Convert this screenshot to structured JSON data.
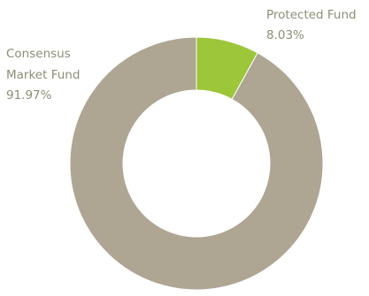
{
  "chart_data": {
    "type": "pie",
    "donut": true,
    "title": "",
    "slices": [
      {
        "label_lines": [
          "Protected Fund"
        ],
        "value": 8.03,
        "value_label": "8.03%",
        "color": "#9dc63a"
      },
      {
        "label_lines": [
          "Consensus",
          "Market Fund"
        ],
        "value": 91.97,
        "value_label": "91.97%",
        "color": "#aea593"
      }
    ],
    "start_angle_deg": 0,
    "direction": "clockwise",
    "label_color": "#8a8f75",
    "legend": "none"
  }
}
